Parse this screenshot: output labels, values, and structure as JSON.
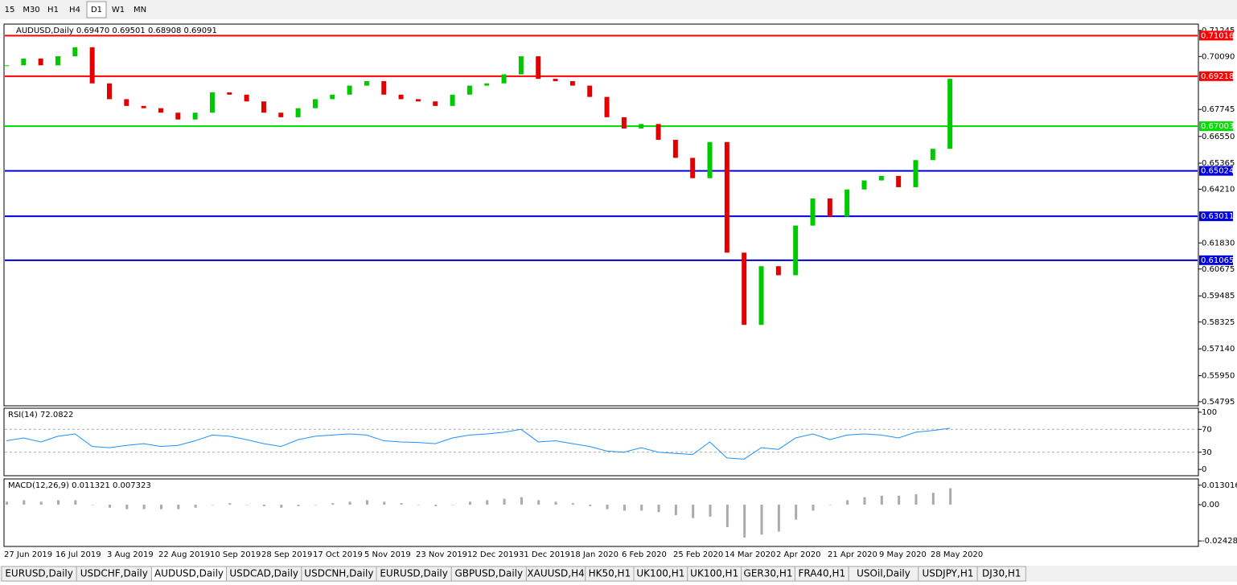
{
  "toolbar": {
    "timeframes": [
      "15",
      "M30",
      "H1",
      "H4",
      "D1",
      "W1",
      "MN"
    ],
    "active": 4
  },
  "chart": {
    "header": "AUDUSD,Daily  0.69470 0.69501 0.68908 0.69091",
    "ylim": [
      0.5465,
      0.7149
    ],
    "yticks": [
      0.71245,
      {
        "value": 0.7009,
        "label": "0.70090"
      },
      0.67745,
      {
        "value": 0.6655,
        "label": "0.66550"
      },
      0.65365,
      {
        "value": 0.6421,
        "label": "0.64210"
      },
      {
        "value": 0.6183,
        "label": "0.61830"
      },
      0.60675,
      0.59485,
      0.58325,
      {
        "value": 0.5714,
        "label": "0.57140"
      },
      {
        "value": 0.5595,
        "label": "0.55950"
      },
      0.54795
    ],
    "levels": [
      {
        "value": 0.71016,
        "color": "#ff0000"
      },
      {
        "value": 0.69218,
        "color": "#ff0000"
      },
      {
        "value": 0.67003,
        "color": "#00e000"
      },
      {
        "value": 0.65024,
        "color": "#0000dd"
      },
      {
        "value": 0.63011,
        "color": "#0000dd"
      },
      {
        "value": 0.61065,
        "color": "#0000dd"
      }
    ],
    "up_color": "#00c800",
    "down_color": "#e00000",
    "close": [
      0.697,
      0.7,
      0.697,
      0.701,
      0.705,
      0.689,
      0.682,
      0.679,
      0.678,
      0.676,
      0.673,
      0.676,
      0.685,
      0.684,
      0.681,
      0.676,
      0.674,
      0.678,
      0.682,
      0.684,
      0.688,
      0.69,
      0.684,
      0.682,
      0.681,
      0.679,
      0.684,
      0.688,
      0.689,
      0.693,
      0.701,
      0.691,
      0.69,
      0.688,
      0.683,
      0.674,
      0.669,
      0.671,
      0.664,
      0.656,
      0.647,
      0.663,
      0.614,
      0.582,
      0.608,
      0.604,
      0.626,
      0.638,
      0.63,
      0.642,
      0.646,
      0.648,
      0.643,
      0.655,
      0.66,
      0.691
    ],
    "x_labels": [
      "27 Jun 2019",
      "16 Jul 2019",
      "3 Aug 2019",
      "22 Aug 2019",
      "10 Sep 2019",
      "28 Sep 2019",
      "17 Oct 2019",
      "5 Nov 2019",
      "23 Nov 2019",
      "12 Dec 2019",
      "31 Dec 2019",
      "18 Jan 2020",
      "6 Feb 2020",
      "25 Feb 2020",
      "14 Mar 2020",
      "2 Apr 2020",
      "21 Apr 2020",
      "9 May 2020",
      "28 May 2020"
    ]
  },
  "rsi": {
    "label": "RSI(14) 72.0822",
    "ylim": [
      -9.6,
      105.5
    ],
    "yticks": [
      0,
      30,
      70,
      100
    ],
    "color": "#1e90ff",
    "values": [
      50,
      55,
      48,
      58,
      62,
      40,
      38,
      42,
      45,
      40,
      42,
      50,
      60,
      58,
      52,
      45,
      40,
      52,
      58,
      60,
      62,
      60,
      50,
      48,
      47,
      45,
      55,
      60,
      62,
      65,
      70,
      48,
      50,
      45,
      40,
      32,
      30,
      38,
      30,
      28,
      26,
      48,
      20,
      18,
      38,
      35,
      55,
      62,
      52,
      60,
      62,
      60,
      55,
      65,
      68,
      72
    ]
  },
  "macd": {
    "label": "MACD(12,26,9) 0.011321 0.007323",
    "ylim": [
      -0.0274,
      0.0167
    ],
    "yticks": [
      0.013016,
      {
        "value": 0,
        "label": "0.00"
      },
      -0.024282
    ],
    "values": [
      0.002,
      0.003,
      0.002,
      0.003,
      0.003,
      0,
      -0.002,
      -0.003,
      -0.003,
      -0.003,
      -0.003,
      -0.002,
      0,
      0.001,
      0,
      -0.001,
      -0.002,
      -0.001,
      0,
      0.001,
      0.002,
      0.003,
      0.002,
      0.001,
      0,
      -0.001,
      0,
      0.002,
      0.003,
      0.004,
      0.005,
      0.003,
      0.002,
      0.001,
      -0.001,
      -0.003,
      -0.004,
      -0.004,
      -0.005,
      -0.007,
      -0.009,
      -0.008,
      -0.015,
      -0.022,
      -0.02,
      -0.018,
      -0.01,
      -0.004,
      0,
      0.003,
      0.005,
      0.006,
      0.006,
      0.007,
      0.008,
      0.011
    ]
  },
  "tabs": {
    "items": [
      "EURUSD,Daily",
      "USDCHF,Daily",
      "AUDUSD,Daily",
      "USDCAD,Daily",
      "USDCNH,Daily",
      "EURUSD,Daily",
      "GBPUSD,Daily",
      "XAUUSD,H4",
      "HK50,H1",
      "UK100,H1",
      "UK100,H1",
      "GER30,H1",
      "FRA40,H1",
      "USOil,Daily",
      "USDJPY,H1",
      "DJ30,H1"
    ],
    "active": 2
  }
}
